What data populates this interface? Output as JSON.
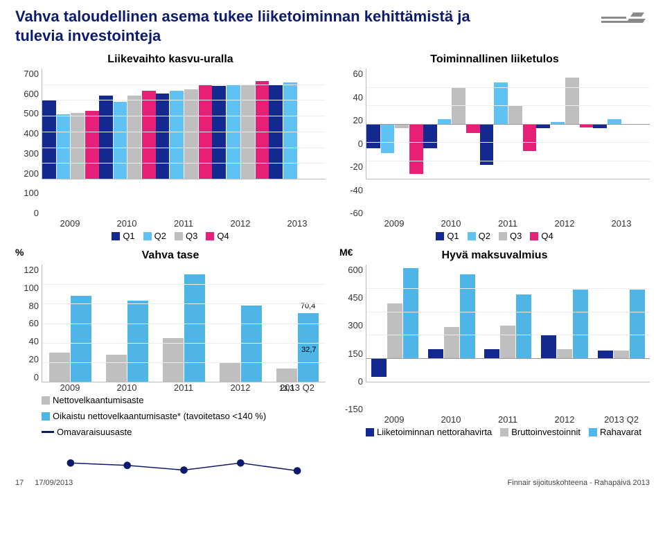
{
  "title": "Vahva taloudellinen asema tukee liiketoiminnan kehittämistä ja tulevia investointeja",
  "footer": {
    "page_num": "17",
    "date": "17/09/2013",
    "right": "Finnair sijoituskohteena - Rahapäivä 2013"
  },
  "colors": {
    "brand_navy": "#0d1b6b",
    "q1": "#13298f",
    "q2": "#5fc2f2",
    "q3": "#bfbfbf",
    "q4": "#e81f76",
    "bar_gray": "#bfbfbf",
    "bar_blue": "#4fb5e6",
    "line_navy": "#0d1b6b",
    "grid": "#eeeeee",
    "axis": "#bbbbbb"
  },
  "chart1": {
    "title": "Liikevaihto kasvu-uralla",
    "title_fontsize": 16,
    "type": "bar-grouped",
    "ylim": [
      0,
      700
    ],
    "ytick_step": 100,
    "yticks": [
      "700",
      "600",
      "500",
      "400",
      "300",
      "200",
      "100",
      "0"
    ],
    "categories": [
      "2009",
      "2010",
      "2011",
      "2012",
      "2013"
    ],
    "series": [
      {
        "label": "Q1",
        "color": "#13298f",
        "values": [
          500,
          530,
          540,
          590,
          600
        ]
      },
      {
        "label": "Q2",
        "color": "#5fc2f2",
        "values": [
          410,
          490,
          560,
          600,
          610
        ]
      },
      {
        "label": "Q3",
        "color": "#bfbfbf",
        "values": [
          420,
          530,
          570,
          600,
          null
        ]
      },
      {
        "label": "Q4",
        "color": "#e81f76",
        "values": [
          430,
          560,
          600,
          620,
          null
        ]
      }
    ],
    "legend_labels": [
      "Q1",
      "Q2",
      "Q3",
      "Q4"
    ]
  },
  "chart2": {
    "title": "Toiminnallinen liiketulos",
    "title_fontsize": 16,
    "type": "bar-grouped-negpos",
    "ylim": [
      -60,
      60
    ],
    "ytick_step": 20,
    "yticks": [
      "60",
      "40",
      "20",
      "0",
      "-20",
      "-40",
      "-60"
    ],
    "categories": [
      "2009",
      "2010",
      "2011",
      "2012",
      "2013"
    ],
    "series": [
      {
        "label": "Q1",
        "color": "#13298f",
        "values": [
          -27,
          -27,
          -45,
          -5,
          -5
        ]
      },
      {
        "label": "Q2",
        "color": "#5fc2f2",
        "values": [
          -32,
          5,
          45,
          2,
          5
        ]
      },
      {
        "label": "Q3",
        "color": "#bfbfbf",
        "values": [
          -5,
          40,
          20,
          50,
          null
        ]
      },
      {
        "label": "Q4",
        "color": "#e81f76",
        "values": [
          -55,
          -10,
          -30,
          -4,
          null
        ]
      }
    ],
    "legend_labels": [
      "Q1",
      "Q2",
      "Q3",
      "Q4"
    ]
  },
  "chart3": {
    "title": "Vahva tase",
    "corner_label": "%",
    "title_fontsize": 16,
    "type": "bar-grouped-line",
    "ylim": [
      0,
      120
    ],
    "ytick_step": 20,
    "yticks": [
      "120",
      "100",
      "80",
      "60",
      "40",
      "20",
      "0"
    ],
    "categories": [
      "2009",
      "2010",
      "2011",
      "2012",
      "2013 Q2"
    ],
    "bars": [
      {
        "label": "Nettovelkaantumisaste",
        "color": "#bfbfbf",
        "values": [
          30,
          28,
          45,
          20,
          13.3
        ],
        "labels": [
          null,
          null,
          null,
          null,
          "13,3"
        ]
      },
      {
        "label": "Oikaistu nettovelkaantumisaste* (tavoitetaso <140 %)",
        "color": "#4fb5e6",
        "values": [
          88,
          83,
          110,
          78,
          70.4
        ],
        "labels": [
          null,
          null,
          null,
          null,
          "70,4"
        ]
      }
    ],
    "line": {
      "label": "Omavaraisuusaste",
      "color": "#0d1b6b",
      "values": [
        36,
        35,
        33,
        36,
        32.7
      ],
      "labels": [
        null,
        null,
        null,
        null,
        "32,7"
      ]
    }
  },
  "chart4": {
    "title": "Hyvä maksuvalmius",
    "corner_label": "M€",
    "title_fontsize": 16,
    "type": "bar-grouped-negpos",
    "ylim": [
      -150,
      600
    ],
    "ytick_step": 150,
    "yticks": [
      "600",
      "450",
      "300",
      "150",
      "0",
      "-150"
    ],
    "categories": [
      "2009",
      "2010",
      "2011",
      "2012",
      "2013 Q2"
    ],
    "series": [
      {
        "label": "Liiketoiminnan nettorahavirta",
        "color": "#13298f",
        "values": [
          -120,
          60,
          60,
          150,
          50
        ]
      },
      {
        "label": "Bruttoinvestoinnit",
        "color": "#bfbfbf",
        "values": [
          350,
          200,
          210,
          60,
          50
        ]
      },
      {
        "label": "Rahavarat",
        "color": "#4fb5e6",
        "values": [
          580,
          540,
          410,
          440,
          440
        ]
      }
    ]
  }
}
